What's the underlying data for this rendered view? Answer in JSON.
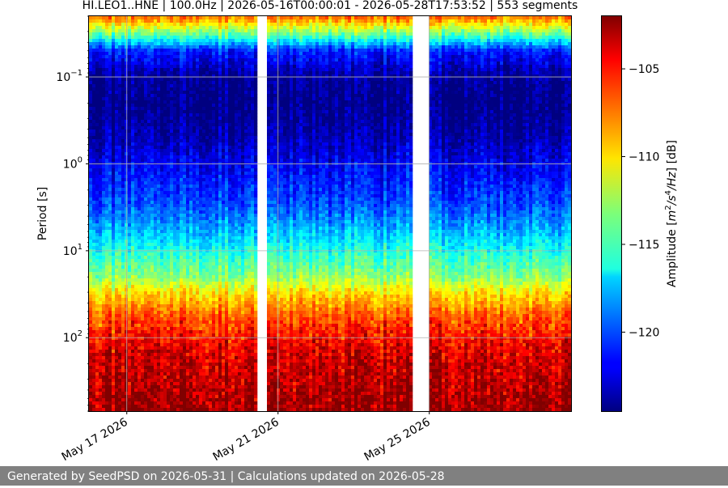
{
  "chart_data": {
    "type": "heatmap",
    "title": "HI.LEO1..HNE | 100.0Hz | 2026-05-16T00:00:01 - 2026-05-28T17:53:52 | 553 segments",
    "ylabel": "Period [s]",
    "xlabel": "",
    "y_scale": "log",
    "y_inverted": true,
    "y_range": [
      0.02,
      700
    ],
    "y_ticks": [
      {
        "value": 0.1,
        "base": "10",
        "exp": "−1"
      },
      {
        "value": 1,
        "base": "10",
        "exp": "0"
      },
      {
        "value": 10,
        "base": "10",
        "exp": "1"
      },
      {
        "value": 100,
        "base": "10",
        "exp": "2"
      }
    ],
    "x_range": [
      "2026-05-16",
      "2026-05-28T18:00"
    ],
    "x_ticks": [
      {
        "value": "2026-05-17",
        "label": "May 17 2026"
      },
      {
        "value": "2026-05-21",
        "label": "May 21 2026"
      },
      {
        "value": "2026-05-25",
        "label": "May 25 2026"
      }
    ],
    "gaps": [
      {
        "start": "2026-05-20T10:00",
        "end": "2026-05-20T17:00"
      },
      {
        "start": "2026-05-24T14:00",
        "end": "2026-05-24T23:30"
      }
    ],
    "amplitude_profile": [
      {
        "period": 0.02,
        "amplitude": -107
      },
      {
        "period": 0.035,
        "amplitude": -115
      },
      {
        "period": 0.05,
        "amplitude": -121
      },
      {
        "period": 0.1,
        "amplitude": -124
      },
      {
        "period": 0.2,
        "amplitude": -124.5
      },
      {
        "period": 0.5,
        "amplitude": -123.5
      },
      {
        "period": 1,
        "amplitude": -122
      },
      {
        "period": 3,
        "amplitude": -120
      },
      {
        "period": 7,
        "amplitude": -117
      },
      {
        "period": 10,
        "amplitude": -115.5
      },
      {
        "period": 20,
        "amplitude": -113
      },
      {
        "period": 30,
        "amplitude": -110
      },
      {
        "period": 60,
        "amplitude": -106.5
      },
      {
        "period": 150,
        "amplitude": -104
      },
      {
        "period": 700,
        "amplitude": -102.5
      }
    ],
    "grid": true,
    "colorbar": {
      "label_prefix": "Amplitude [",
      "label_unit": "m",
      "label_rest": "/s",
      "label_unit2": "/Hz",
      "label_suffix": "] [dB]",
      "sup1": "2",
      "sup2": "4",
      "range": [
        -124.5,
        -102
      ],
      "colormap": "jet",
      "ticks": [
        {
          "value": -105,
          "label": "−105"
        },
        {
          "value": -110,
          "label": "−110"
        },
        {
          "value": -115,
          "label": "−115"
        },
        {
          "value": -120,
          "label": "−120"
        }
      ]
    }
  },
  "footer": {
    "text": "Generated by SeedPSD on 2026-05-31 | Calculations updated on 2026-05-28"
  }
}
